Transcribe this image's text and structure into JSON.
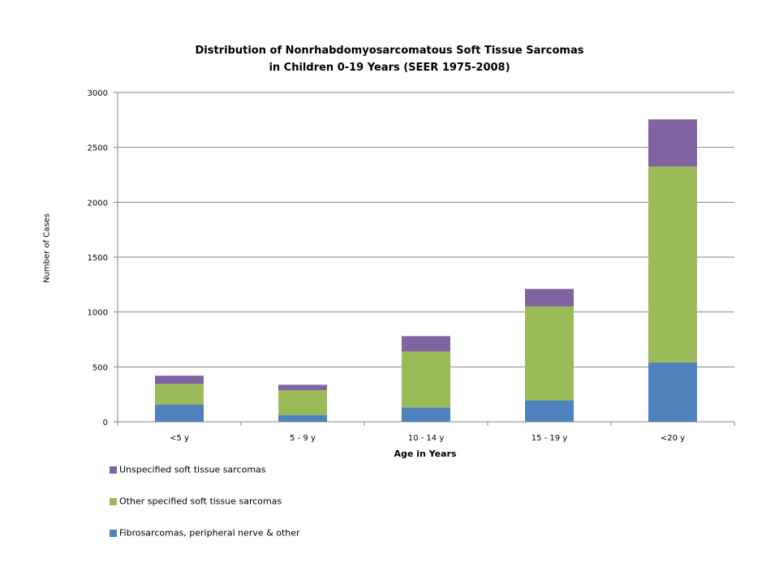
{
  "chart_data": {
    "type": "bar",
    "stacked": true,
    "title_lines": [
      "Distribution of  Nonrhabdomyosarcomatous Soft Tissue Sarcomas",
      "in Children 0-19 Years (SEER 1975-2008)"
    ],
    "xlabel": "Age in Years",
    "ylabel": "Number of Cases",
    "ylim": [
      0,
      3000
    ],
    "yticks": [
      0,
      500,
      1000,
      1500,
      2000,
      2500,
      3000
    ],
    "grid": true,
    "legend_position": "bottom-left",
    "categories": [
      "<5 y",
      "5 - 9 y",
      "10 - 14 y",
      "15 - 19 y",
      "<20 y"
    ],
    "series": [
      {
        "name": "Fibrosarcomas, peripheral nerve & other",
        "color": "#4f81bd",
        "values": [
          155,
          62,
          130,
          195,
          540
        ]
      },
      {
        "name": "Other specified soft tissue sarcomas",
        "color": "#9bbb59",
        "values": [
          190,
          225,
          510,
          855,
          1785
        ]
      },
      {
        "name": "Unspecified soft tissue sarcomas",
        "color": "#8064a2",
        "values": [
          75,
          50,
          140,
          160,
          430
        ]
      }
    ]
  }
}
